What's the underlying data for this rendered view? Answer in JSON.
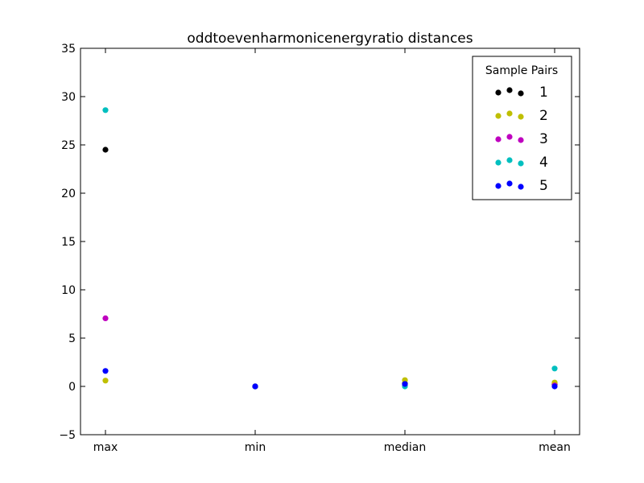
{
  "chart_data": {
    "type": "scatter",
    "title": "oddtoevenharmonicenergyratio distances",
    "xlabel": "",
    "ylabel": "",
    "categories": [
      "max",
      "min",
      "median",
      "mean"
    ],
    "ylim": [
      -5,
      35
    ],
    "yticks": [
      "−5",
      "0",
      "5",
      "10",
      "15",
      "20",
      "25",
      "30",
      "35"
    ],
    "grid": false,
    "legend": {
      "title": "Sample Pairs",
      "placement": "top-right"
    },
    "series": [
      {
        "name": "1",
        "color": "#000000",
        "values": [
          24.5,
          0.0,
          0.3,
          0.2
        ]
      },
      {
        "name": "2",
        "color": "#bfbf00",
        "values": [
          0.6,
          0.0,
          0.65,
          0.4
        ]
      },
      {
        "name": "3",
        "color": "#bf00bf",
        "values": [
          7.05,
          0.0,
          0.15,
          0.1
        ]
      },
      {
        "name": "4",
        "color": "#00bfbf",
        "values": [
          28.6,
          0.0,
          0.0,
          1.85
        ]
      },
      {
        "name": "5",
        "color": "#0000ff",
        "values": [
          1.6,
          0.0,
          0.25,
          0.0
        ]
      }
    ]
  }
}
